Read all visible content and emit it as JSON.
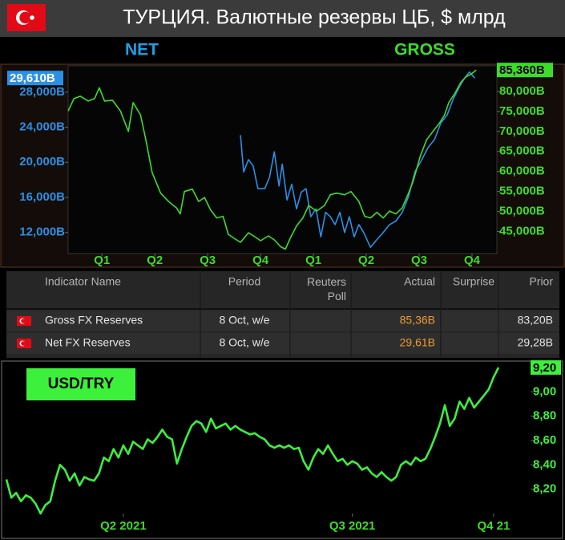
{
  "header": {
    "title": "ТУРЦИЯ. Валютные резервы ЦБ, $ млрд"
  },
  "chart_data": [
    {
      "type": "line",
      "xlim": [
        -0.14,
        7.97
      ],
      "xticks": [
        {
          "value": 0.5,
          "label": "Q1"
        },
        {
          "value": 1.5,
          "label": "Q2"
        },
        {
          "value": 2.5,
          "label": "Q3"
        },
        {
          "value": 3.5,
          "label": "Q4"
        },
        {
          "value": 4.5,
          "label": "Q1"
        },
        {
          "value": 5.5,
          "label": "Q2"
        },
        {
          "value": 6.5,
          "label": "Q3"
        },
        {
          "value": 7.5,
          "label": "Q4"
        }
      ],
      "ylim": [
        9.6,
        31
      ],
      "yticks": [
        {
          "value": 12,
          "label": "12,000B"
        },
        {
          "value": 16,
          "label": "16,000B"
        },
        {
          "value": 20,
          "label": "20,000B"
        },
        {
          "value": 24,
          "label": "24,000B"
        },
        {
          "value": 28,
          "label": "28,000B"
        }
      ],
      "y2lim": [
        39.5,
        86.4
      ],
      "y2ticks": [
        {
          "value": 45,
          "label": "45,000B"
        },
        {
          "value": 50,
          "label": "50,000B"
        },
        {
          "value": 55,
          "label": "55,000B"
        },
        {
          "value": 60,
          "label": "60,000B"
        },
        {
          "value": 65,
          "label": "65,000B"
        },
        {
          "value": 70,
          "label": "70,000B"
        },
        {
          "value": 75,
          "label": "75,000B"
        },
        {
          "value": 80,
          "label": "80,000B"
        },
        {
          "value": 85,
          "label": "85,000B"
        }
      ],
      "series": [
        {
          "name": "NET",
          "color": "#2a90e6",
          "axis": "y",
          "last_label": "29,610B",
          "x": [
            3.12,
            3.18,
            3.27,
            3.36,
            3.45,
            3.58,
            3.67,
            3.76,
            3.85,
            3.91,
            4.0,
            4.09,
            4.18,
            4.27,
            4.36,
            4.45,
            4.55,
            4.64,
            4.73,
            4.82,
            4.91,
            5.0,
            5.09,
            5.18,
            5.27,
            5.36,
            5.45,
            5.58,
            5.7,
            5.82,
            5.94,
            6.06,
            6.18,
            6.3,
            6.42,
            6.55,
            6.67,
            6.79,
            6.91,
            7.03,
            7.15,
            7.27,
            7.36,
            7.45,
            7.55
          ],
          "values": [
            23.1,
            18.9,
            20.3,
            19.6,
            17.0,
            17.0,
            18.3,
            21.2,
            17.3,
            19.8,
            15.7,
            17.5,
            14.7,
            16.6,
            17.0,
            13.8,
            14.7,
            11.5,
            14.3,
            13.8,
            12.9,
            14.3,
            12.0,
            13.8,
            11.5,
            12.9,
            12.0,
            10.3,
            11.2,
            12.0,
            12.9,
            13.3,
            14.3,
            16.1,
            18.9,
            20.3,
            21.7,
            22.6,
            24.5,
            25.4,
            27.3,
            28.7,
            29.6,
            30.3,
            29.61
          ]
        },
        {
          "name": "GROSS",
          "color": "#3ddc2a",
          "axis": "y2",
          "last_label": "85,360B",
          "x": [
            -0.14,
            -0.03,
            0.09,
            0.24,
            0.36,
            0.45,
            0.55,
            0.7,
            0.85,
            1.0,
            1.09,
            1.23,
            1.33,
            1.45,
            1.61,
            1.76,
            1.91,
            1.98,
            2.06,
            2.21,
            2.33,
            2.44,
            2.55,
            2.67,
            2.79,
            2.89,
            3.0,
            3.12,
            3.27,
            3.39,
            3.5,
            3.65,
            3.76,
            3.88,
            3.97,
            4.06,
            4.18,
            4.3,
            4.41,
            4.56,
            4.71,
            4.82,
            4.94,
            5.09,
            5.21,
            5.36,
            5.47,
            5.58,
            5.7,
            5.82,
            5.94,
            6.06,
            6.18,
            6.3,
            6.39,
            6.52,
            6.64,
            6.76,
            6.88,
            6.98,
            7.06,
            7.18,
            7.29,
            7.39,
            7.48,
            7.58
          ],
          "values": [
            75.1,
            78.2,
            78.8,
            77.6,
            78.2,
            80.9,
            77.6,
            77.8,
            75.1,
            70.0,
            77.2,
            74.1,
            67.9,
            59.7,
            54.6,
            52.5,
            50.9,
            49.4,
            55.0,
            55.6,
            52.5,
            53.5,
            50.5,
            48.4,
            48.8,
            44.3,
            43.3,
            42.3,
            44.7,
            43.7,
            42.7,
            43.9,
            42.9,
            41.2,
            40.6,
            43.3,
            46.4,
            48.4,
            51.5,
            50.1,
            51.5,
            54.2,
            54.6,
            54.2,
            55.0,
            52.5,
            48.8,
            48.4,
            49.8,
            48.4,
            50.1,
            49.4,
            50.9,
            54.6,
            57.7,
            63.8,
            67.9,
            70.0,
            72.0,
            74.1,
            77.2,
            79.6,
            82.3,
            83.7,
            84.3,
            85.36
          ]
        }
      ]
    },
    {
      "type": "line",
      "title": "USD/TRY",
      "xlim": [
        0,
        101
      ],
      "xticks": [
        {
          "value": 24,
          "label": "Q2 2021"
        },
        {
          "value": 71,
          "label": "Q3 2021"
        },
        {
          "value": 100,
          "label": "Q4 21"
        }
      ],
      "ylim": [
        8.0,
        9.22
      ],
      "yticks": [
        {
          "value": 8.2,
          "label": "8,20"
        },
        {
          "value": 8.4,
          "label": "8,40"
        },
        {
          "value": 8.6,
          "label": "8,60"
        },
        {
          "value": 8.8,
          "label": "8,80"
        },
        {
          "value": 9.0,
          "label": "9,00"
        }
      ],
      "series": [
        {
          "color": "#3cf03c",
          "last_label": "9,20",
          "values": [
            8.28,
            8.13,
            8.17,
            8.1,
            8.15,
            8.13,
            8.08,
            8.0,
            8.07,
            8.1,
            8.27,
            8.4,
            8.36,
            8.27,
            8.33,
            8.23,
            8.3,
            8.28,
            8.27,
            8.33,
            8.46,
            8.43,
            8.53,
            8.46,
            8.56,
            8.49,
            8.59,
            8.56,
            8.53,
            8.61,
            8.58,
            8.63,
            8.69,
            8.63,
            8.61,
            8.41,
            8.53,
            8.63,
            8.72,
            8.76,
            8.74,
            8.67,
            8.78,
            8.7,
            8.72,
            8.74,
            8.69,
            8.72,
            8.69,
            8.67,
            8.65,
            8.66,
            8.63,
            8.61,
            8.56,
            8.54,
            8.56,
            8.54,
            8.56,
            8.53,
            8.54,
            8.43,
            8.36,
            8.46,
            8.53,
            8.49,
            8.56,
            8.49,
            8.43,
            8.45,
            8.4,
            8.43,
            8.41,
            8.36,
            8.38,
            8.33,
            8.3,
            8.34,
            8.3,
            8.27,
            8.3,
            8.4,
            8.43,
            8.4,
            8.46,
            8.43,
            8.45,
            8.53,
            8.63,
            8.74,
            8.89,
            8.72,
            8.78,
            8.92,
            8.86,
            8.95,
            8.87,
            8.92,
            8.97,
            9.02,
            9.12,
            9.2
          ]
        }
      ]
    }
  ],
  "table": {
    "columns": [
      "Indicator Name",
      "Period",
      "Reuters Poll",
      "Actual",
      "Surprise",
      "Prior"
    ],
    "rows": [
      {
        "name": "Gross FX Reserves",
        "period": "8 Oct, w/e",
        "actual": "85,36B",
        "prior": "83,20B"
      },
      {
        "name": "Net FX Reserves",
        "period": "8 Oct, w/e",
        "actual": "29,61B",
        "prior": "29,28B"
      }
    ]
  }
}
